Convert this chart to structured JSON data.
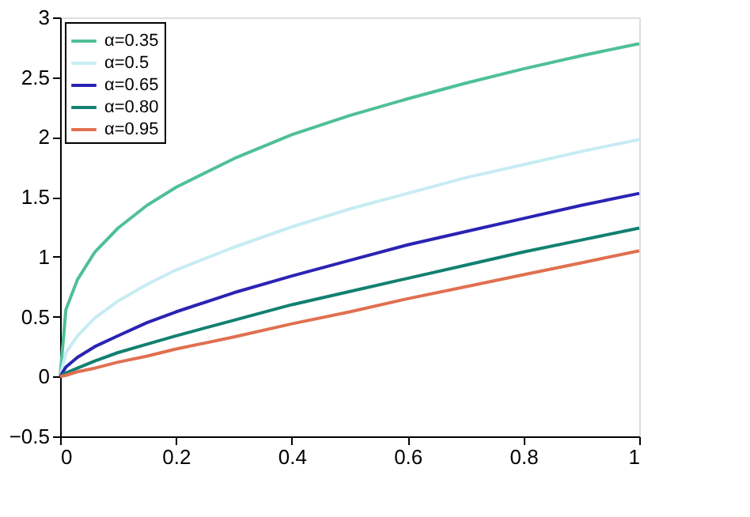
{
  "chart_data": {
    "type": "line",
    "x": [
      0,
      0.01,
      0.03,
      0.06,
      0.1,
      0.15,
      0.2,
      0.3,
      0.4,
      0.5,
      0.6,
      0.7,
      0.8,
      0.9,
      1
    ],
    "series": [
      {
        "name": "α=0.35",
        "color": "#4fc096",
        "values": [
          0,
          0.56,
          0.81,
          1.04,
          1.24,
          1.43,
          1.58,
          1.82,
          2.02,
          2.18,
          2.32,
          2.45,
          2.57,
          2.68,
          2.78
        ]
      },
      {
        "name": "α=0.5",
        "color": "#c7ecf3",
        "values": [
          0,
          0.2,
          0.34,
          0.49,
          0.63,
          0.77,
          0.89,
          1.08,
          1.25,
          1.4,
          1.53,
          1.66,
          1.77,
          1.88,
          1.98
        ]
      },
      {
        "name": "α=0.65",
        "color": "#2b23b3",
        "values": [
          0,
          0.08,
          0.16,
          0.25,
          0.34,
          0.45,
          0.54,
          0.7,
          0.84,
          0.97,
          1.1,
          1.21,
          1.32,
          1.43,
          1.53
        ]
      },
      {
        "name": "α=0.80",
        "color": "#128070",
        "values": [
          0,
          0.03,
          0.07,
          0.13,
          0.2,
          0.27,
          0.34,
          0.47,
          0.6,
          0.71,
          0.82,
          0.93,
          1.04,
          1.14,
          1.24
        ]
      },
      {
        "name": "α=0.95",
        "color": "#e07050",
        "values": [
          0,
          0.01,
          0.04,
          0.07,
          0.12,
          0.17,
          0.23,
          0.33,
          0.44,
          0.54,
          0.65,
          0.75,
          0.85,
          0.95,
          1.05
        ]
      }
    ],
    "xlim": [
      0,
      1
    ],
    "xticks": [
      0,
      0.2,
      0.4,
      0.6,
      0.8,
      1
    ],
    "ylim": [
      -0.5,
      3
    ],
    "yticks": [
      -0.5,
      0,
      0.5,
      1,
      1.5,
      2,
      2.5,
      3
    ],
    "grid": false,
    "legend": "top left",
    "marker": "none",
    "line_style": "solid"
  }
}
